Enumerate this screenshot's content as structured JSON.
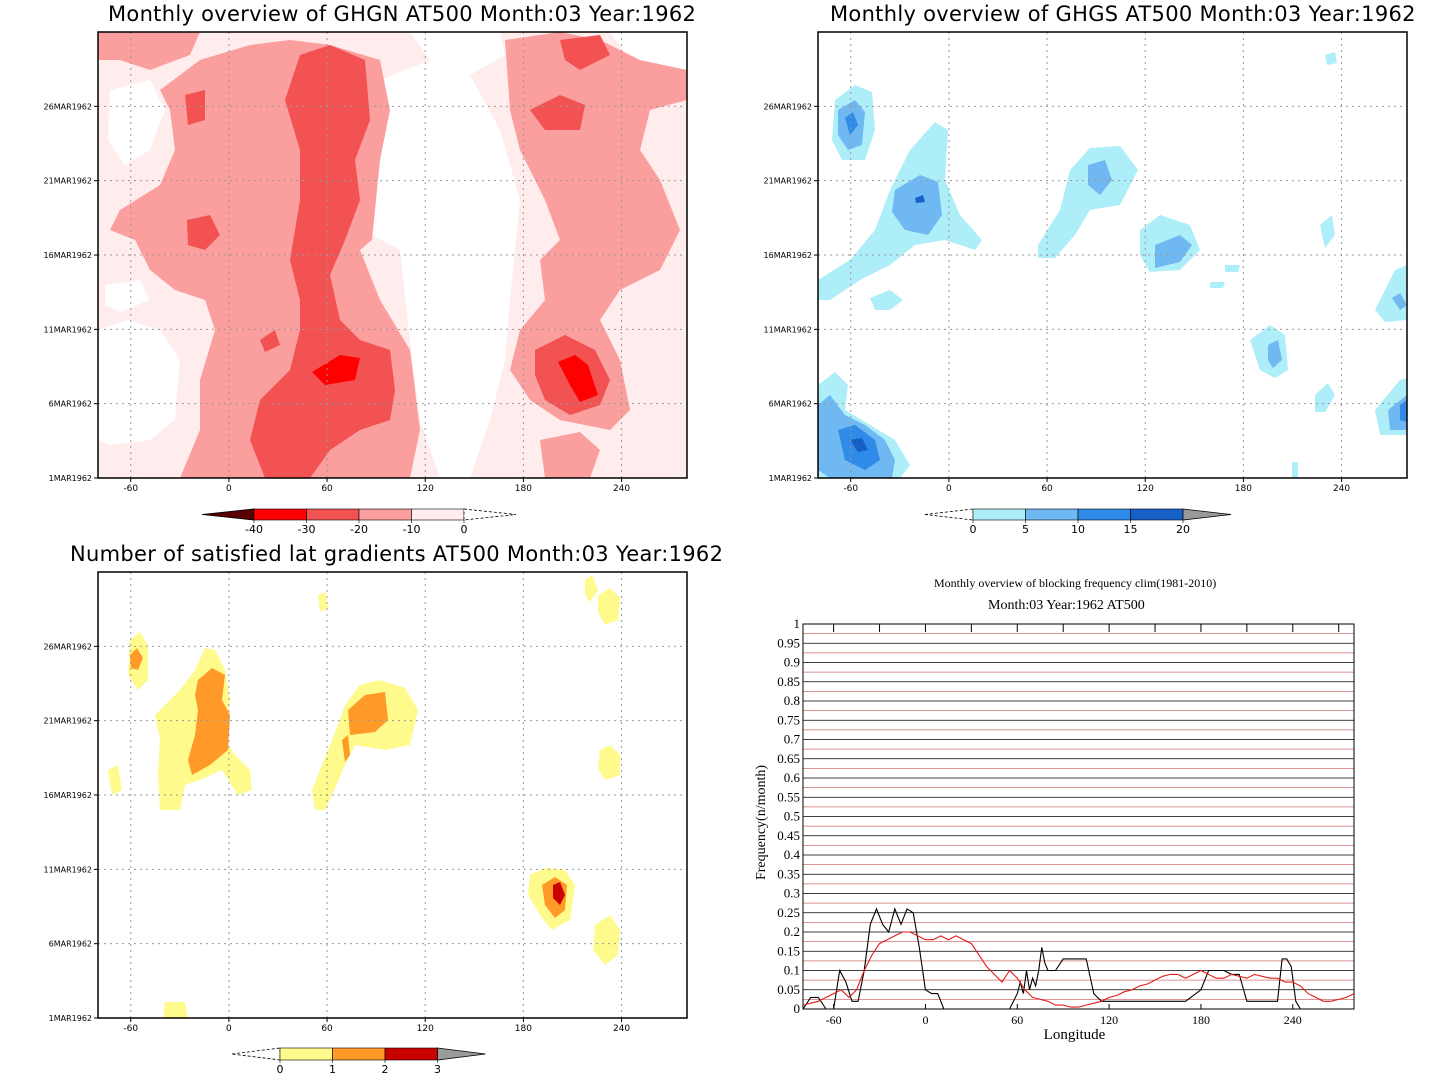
{
  "chart_data": [
    {
      "type": "heatmap",
      "title": "Monthly overview of GHGN AT500 Month:03 Year:1962",
      "xticks": [
        "-60",
        "0",
        "60",
        "120",
        "180",
        "240"
      ],
      "xtick_values": [
        -60,
        0,
        60,
        120,
        180,
        240
      ],
      "xlim": [
        -80,
        280
      ],
      "yticks": [
        "1MAR1962",
        "6MAR1962",
        "11MAR1962",
        "16MAR1962",
        "21MAR1962",
        "26MAR1962"
      ],
      "ytick_values": [
        1,
        6,
        11,
        16,
        21,
        26
      ],
      "ylim": [
        1,
        31
      ],
      "colorbar": {
        "labels": [
          "-40",
          "-30",
          "-20",
          "-10",
          "0"
        ],
        "colors": [
          "#5a0000",
          "#ff0000",
          "#f25252",
          "#fa9e9e",
          "#ffecec",
          "#ffffff"
        ]
      },
      "grid": true
    },
    {
      "type": "heatmap",
      "title": "Monthly overview of GHGS AT500 Month:03 Year:1962",
      "xticks": [
        "-60",
        "0",
        "60",
        "120",
        "180",
        "240"
      ],
      "xtick_values": [
        -60,
        0,
        60,
        120,
        180,
        240
      ],
      "xlim": [
        -80,
        280
      ],
      "yticks": [
        "1MAR1962",
        "6MAR1962",
        "11MAR1962",
        "16MAR1962",
        "21MAR1962",
        "26MAR1962"
      ],
      "ytick_values": [
        1,
        6,
        11,
        16,
        21,
        26
      ],
      "ylim": [
        1,
        31
      ],
      "colorbar": {
        "labels": [
          "0",
          "5",
          "10",
          "15",
          "20"
        ],
        "colors": [
          "#ffffff",
          "#aeeef8",
          "#6fb8f2",
          "#2f8ae8",
          "#1660c8",
          "#9a9a9a"
        ]
      },
      "grid": true
    },
    {
      "type": "heatmap",
      "title": "Number of satisfied lat gradients AT500 Month:03 Year:1962",
      "xticks": [
        "-60",
        "0",
        "60",
        "120",
        "180",
        "240"
      ],
      "xtick_values": [
        -60,
        0,
        60,
        120,
        180,
        240
      ],
      "xlim": [
        -80,
        280
      ],
      "yticks": [
        "1MAR1962",
        "6MAR1962",
        "11MAR1962",
        "16MAR1962",
        "21MAR1962",
        "26MAR1962"
      ],
      "ytick_values": [
        1,
        6,
        11,
        16,
        21,
        26
      ],
      "ylim": [
        1,
        31
      ],
      "colorbar": {
        "labels": [
          "0",
          "1",
          "2",
          "3"
        ],
        "colors": [
          "#ffffff",
          "#fffa8c",
          "#ff9a28",
          "#c80000",
          "#9a9a9a"
        ]
      },
      "grid": true
    },
    {
      "type": "line",
      "title": "Monthly overview of blocking frequency clim(1981-2010)",
      "subtitle": "Month:03 Year:1962  AT500",
      "xlabel": "Longitude",
      "ylabel": "Frequency(n/month)",
      "xticks": [
        "-60",
        "0",
        "60",
        "120",
        "180",
        "240"
      ],
      "xtick_values": [
        -60,
        0,
        60,
        120,
        180,
        240
      ],
      "xlim": [
        -80,
        280
      ],
      "ylim": [
        0,
        1
      ],
      "yticks": [
        "0",
        "0.05",
        "0.1",
        "0.15",
        "0.2",
        "0.25",
        "0.3",
        "0.35",
        "0.4",
        "0.45",
        "0.5",
        "0.55",
        "0.6",
        "0.65",
        "0.7",
        "0.75",
        "0.8",
        "0.85",
        "0.9",
        "0.95",
        "1"
      ],
      "series": [
        {
          "color": "#000000",
          "x": [
            -80,
            -75,
            -70,
            -65,
            -60,
            -56,
            -52,
            -48,
            -44,
            -40,
            -36,
            -32,
            -28,
            -24,
            -20,
            -16,
            -12,
            -8,
            -4,
            0,
            4,
            8,
            12,
            16,
            20,
            25,
            30,
            35,
            40,
            45,
            50,
            55,
            60,
            62,
            64,
            66,
            68,
            70,
            72,
            74,
            76,
            78,
            80,
            85,
            90,
            95,
            100,
            105,
            110,
            115,
            120,
            130,
            140,
            150,
            160,
            170,
            180,
            185,
            190,
            195,
            200,
            205,
            210,
            215,
            220,
            225,
            230,
            233,
            236,
            239,
            242,
            245,
            250,
            260,
            270,
            280
          ],
          "y": [
            0,
            0.03,
            0.03,
            0,
            0,
            0.1,
            0.07,
            0.02,
            0.02,
            0.1,
            0.22,
            0.26,
            0.22,
            0.2,
            0.26,
            0.22,
            0.26,
            0.25,
            0.16,
            0.05,
            0.04,
            0.04,
            0,
            0,
            0,
            0,
            0,
            0,
            0,
            0,
            0,
            0,
            0.04,
            0.07,
            0.04,
            0.1,
            0.05,
            0.08,
            0.06,
            0.1,
            0.16,
            0.12,
            0.1,
            0.1,
            0.13,
            0.13,
            0.13,
            0.13,
            0.04,
            0.02,
            0.02,
            0.02,
            0.02,
            0.02,
            0.02,
            0.02,
            0.05,
            0.1,
            0.1,
            0.1,
            0.09,
            0.09,
            0.02,
            0.02,
            0.02,
            0.02,
            0.02,
            0.13,
            0.13,
            0.11,
            0.02,
            0,
            0,
            0,
            0,
            0
          ]
        },
        {
          "color": "#e21b1b",
          "x": [
            -80,
            -75,
            -70,
            -65,
            -60,
            -55,
            -50,
            -45,
            -40,
            -35,
            -30,
            -25,
            -20,
            -15,
            -10,
            -5,
            0,
            5,
            10,
            15,
            20,
            25,
            30,
            35,
            40,
            45,
            50,
            55,
            60,
            65,
            70,
            75,
            80,
            85,
            90,
            95,
            100,
            105,
            110,
            115,
            120,
            125,
            130,
            135,
            140,
            145,
            150,
            155,
            160,
            165,
            170,
            175,
            180,
            185,
            190,
            195,
            200,
            205,
            210,
            215,
            220,
            225,
            230,
            235,
            240,
            245,
            250,
            255,
            260,
            265,
            270,
            275,
            280
          ],
          "y": [
            0.01,
            0.015,
            0.02,
            0.03,
            0.04,
            0.05,
            0.03,
            0.05,
            0.1,
            0.14,
            0.17,
            0.18,
            0.19,
            0.2,
            0.2,
            0.19,
            0.18,
            0.18,
            0.19,
            0.18,
            0.19,
            0.18,
            0.17,
            0.14,
            0.11,
            0.09,
            0.07,
            0.1,
            0.08,
            0.05,
            0.03,
            0.025,
            0.02,
            0.01,
            0.01,
            0.005,
            0.005,
            0.01,
            0.015,
            0.02,
            0.03,
            0.035,
            0.045,
            0.05,
            0.06,
            0.065,
            0.075,
            0.085,
            0.09,
            0.09,
            0.08,
            0.09,
            0.1,
            0.09,
            0.08,
            0.08,
            0.09,
            0.085,
            0.08,
            0.09,
            0.085,
            0.08,
            0.08,
            0.07,
            0.07,
            0.06,
            0.04,
            0.03,
            0.02,
            0.02,
            0.025,
            0.03,
            0.04
          ]
        }
      ],
      "hlines_black": [
        0,
        0.05,
        0.1,
        0.15,
        0.2,
        0.25,
        0.3,
        0.35,
        0.4,
        0.45,
        0.5,
        0.55,
        0.6,
        0.65,
        0.7,
        0.75,
        0.8,
        0.85,
        0.9,
        0.95,
        1
      ],
      "hlines_red": [
        0.025,
        0.075,
        0.125,
        0.175,
        0.225,
        0.275,
        0.325,
        0.375,
        0.425,
        0.475,
        0.525,
        0.575,
        0.625,
        0.675,
        0.725,
        0.775,
        0.825,
        0.875,
        0.925,
        0.975
      ]
    }
  ]
}
